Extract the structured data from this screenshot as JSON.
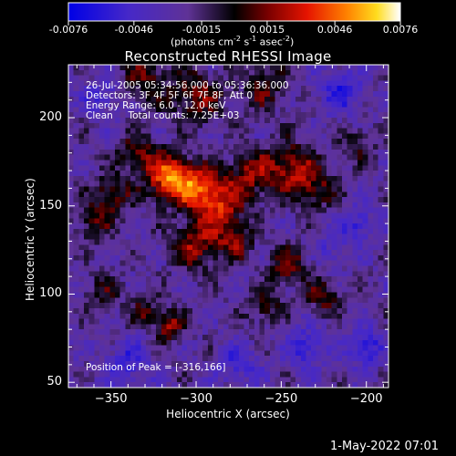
{
  "colorbar": {
    "ticks": [
      "-0.0076",
      "-0.0046",
      "-0.0015",
      "0.0015",
      "0.0046",
      "0.0076"
    ],
    "unit_label_prefix": "(photons cm",
    "unit_exp1": "-2",
    "unit_mid": " s",
    "unit_exp2": "-1",
    "unit_mid2": " asec",
    "unit_exp3": "-2",
    "unit_suffix": ")"
  },
  "title": "Reconstructed RHESSI Image",
  "annotations": {
    "line1": "26-Jul-2005 05:34:56.000 to 05:36:36.000",
    "line2": "Detectors: 3F 4F 5F 6F 7F 8F, Att 0",
    "line3": "Energy Range: 6.0 - 12.0 keV",
    "line4": "Clean     Total counts: 7.25E+03",
    "peak": "Position of Peak = [-316,166]"
  },
  "footer_stamp": "1-May-2022 07:01",
  "chart_data": {
    "type": "heatmap",
    "title": "Reconstructed RHESSI Image",
    "xlabel": "Heliocentric X (arcsec)",
    "ylabel": "Heliocentric Y (arcsec)",
    "xlim": [
      -375,
      -187
    ],
    "ylim": [
      47,
      230
    ],
    "x_ticks": [
      -350,
      -300,
      -250,
      -200
    ],
    "y_ticks": [
      50,
      100,
      150,
      200
    ],
    "colorbar_range": [
      -0.0076,
      0.0076
    ],
    "colorbar_ticks": [
      -0.0076,
      -0.0046,
      -0.0015,
      0.0015,
      0.0046,
      0.0076
    ],
    "colormap": "blue-purple-black-red-orange-yellow-white",
    "peak_position": [
      -316,
      166
    ],
    "peak_value": 0.0076,
    "blobs": [
      {
        "x": -316,
        "y": 166,
        "sigma": 9,
        "amp": 0.0076
      },
      {
        "x": -298,
        "y": 160,
        "sigma": 9,
        "amp": 0.0055
      },
      {
        "x": -285,
        "y": 150,
        "sigma": 10,
        "amp": 0.0045
      },
      {
        "x": -268,
        "y": 168,
        "sigma": 9,
        "amp": 0.0042
      },
      {
        "x": -245,
        "y": 172,
        "sigma": 10,
        "amp": 0.0045
      },
      {
        "x": -230,
        "y": 160,
        "sigma": 9,
        "amp": 0.0034
      },
      {
        "x": -300,
        "y": 128,
        "sigma": 10,
        "amp": 0.0042
      },
      {
        "x": -277,
        "y": 130,
        "sigma": 8,
        "amp": 0.0034
      },
      {
        "x": -350,
        "y": 156,
        "sigma": 8,
        "amp": 0.004
      },
      {
        "x": -335,
        "y": 180,
        "sigma": 8,
        "amp": 0.0034
      },
      {
        "x": -360,
        "y": 140,
        "sigma": 7,
        "amp": 0.003
      },
      {
        "x": -300,
        "y": 212,
        "sigma": 11,
        "amp": 0.0038
      },
      {
        "x": -330,
        "y": 222,
        "sigma": 9,
        "amp": 0.0034
      },
      {
        "x": -260,
        "y": 218,
        "sigma": 10,
        "amp": 0.003
      },
      {
        "x": -315,
        "y": 82,
        "sigma": 6,
        "amp": 0.0045
      },
      {
        "x": -330,
        "y": 90,
        "sigma": 6,
        "amp": 0.0028
      },
      {
        "x": -245,
        "y": 115,
        "sigma": 8,
        "amp": 0.0038
      },
      {
        "x": -225,
        "y": 98,
        "sigma": 7,
        "amp": 0.0034
      },
      {
        "x": -260,
        "y": 92,
        "sigma": 7,
        "amp": 0.003
      },
      {
        "x": -355,
        "y": 100,
        "sigma": 8,
        "amp": 0.0022
      },
      {
        "x": -205,
        "y": 185,
        "sigma": 7,
        "amp": 0.0026
      },
      {
        "x": -200,
        "y": 70,
        "sigma": 7,
        "amp": -0.004
      },
      {
        "x": -215,
        "y": 215,
        "sigma": 9,
        "amp": -0.0032
      },
      {
        "x": -235,
        "y": 70,
        "sigma": 8,
        "amp": -0.003
      },
      {
        "x": -355,
        "y": 212,
        "sigma": 7,
        "amp": -0.0025
      },
      {
        "x": -340,
        "y": 60,
        "sigma": 9,
        "amp": -0.0028
      },
      {
        "x": -275,
        "y": 60,
        "sigma": 8,
        "amp": -0.0026
      },
      {
        "x": -205,
        "y": 140,
        "sigma": 7,
        "amp": -0.003
      },
      {
        "x": -220,
        "y": 125,
        "sigma": 6,
        "amp": -0.0022
      }
    ]
  }
}
